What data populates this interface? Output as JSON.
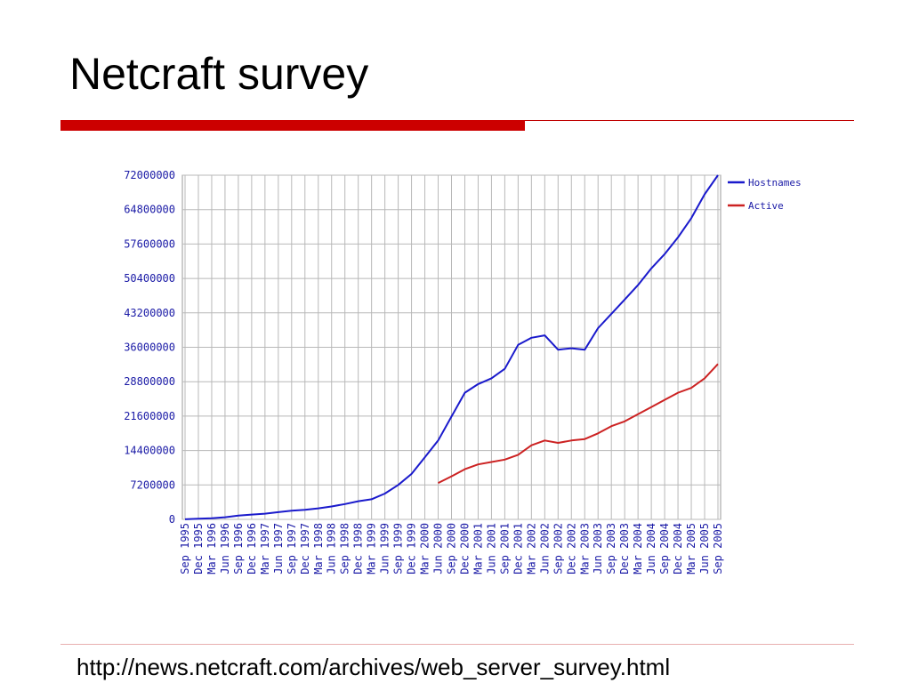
{
  "slide": {
    "title": "Netcraft survey",
    "footer_url": "http://news.netcraft.com/archives/web_server_survey.html"
  },
  "chart_data": {
    "type": "line",
    "title": "",
    "xlabel": "",
    "ylabel": "",
    "ylim": [
      0,
      72000000
    ],
    "y_ticks": [
      0,
      7200000,
      14400000,
      21600000,
      28800000,
      36000000,
      43200000,
      50400000,
      57600000,
      64800000,
      72000000
    ],
    "x_ticks": [
      "Sep 1995",
      "Dec 1995",
      "Mar 1996",
      "Jun 1996",
      "Sep 1996",
      "Dec 1996",
      "Mar 1997",
      "Jun 1997",
      "Sep 1997",
      "Dec 1997",
      "Mar 1998",
      "Jun 1998",
      "Sep 1998",
      "Dec 1998",
      "Mar 1999",
      "Jun 1999",
      "Sep 1999",
      "Dec 1999",
      "Mar 2000",
      "Jun 2000",
      "Sep 2000",
      "Dec 2000",
      "Mar 2001",
      "Jun 2001",
      "Sep 2001",
      "Dec 2001",
      "Mar 2002",
      "Jun 2002",
      "Sep 2002",
      "Dec 2002",
      "Mar 2003",
      "Jun 2003",
      "Sep 2003",
      "Dec 2003",
      "Mar 2004",
      "Jun 2004",
      "Sep 2004",
      "Dec 2004",
      "Mar 2005",
      "Jun 2005",
      "Sep 2005"
    ],
    "grid": true,
    "legend_position": "right",
    "series": [
      {
        "name": "Hostnames",
        "color": "#1a1acc",
        "x": [
          "Sep 1995",
          "Dec 1995",
          "Mar 1996",
          "Jun 1996",
          "Sep 1996",
          "Dec 1996",
          "Mar 1997",
          "Jun 1997",
          "Sep 1997",
          "Dec 1997",
          "Mar 1998",
          "Jun 1998",
          "Sep 1998",
          "Dec 1998",
          "Mar 1999",
          "Jun 1999",
          "Sep 1999",
          "Dec 1999",
          "Mar 2000",
          "Jun 2000",
          "Sep 2000",
          "Dec 2000",
          "Mar 2001",
          "Jun 2001",
          "Sep 2001",
          "Dec 2001",
          "Mar 2002",
          "Jun 2002",
          "Sep 2002",
          "Dec 2002",
          "Mar 2003",
          "Jun 2003",
          "Sep 2003",
          "Dec 2003",
          "Mar 2004",
          "Jun 2004",
          "Sep 2004",
          "Dec 2004",
          "Mar 2005",
          "Jun 2005",
          "Sep 2005"
        ],
        "values": [
          20000,
          150000,
          250000,
          450000,
          800000,
          1000000,
          1200000,
          1500000,
          1800000,
          2000000,
          2300000,
          2700000,
          3200000,
          3800000,
          4200000,
          5400000,
          7200000,
          9500000,
          13000000,
          16500000,
          21500000,
          26500000,
          28300000,
          29500000,
          31500000,
          36500000,
          38000000,
          38500000,
          35500000,
          35800000,
          35500000,
          40000000,
          43000000,
          46000000,
          49000000,
          52500000,
          55500000,
          59000000,
          63000000,
          68000000,
          72000000
        ]
      },
      {
        "name": "Active",
        "color": "#cc2222",
        "x": [
          "Jun 2000",
          "Sep 2000",
          "Dec 2000",
          "Mar 2001",
          "Jun 2001",
          "Sep 2001",
          "Dec 2001",
          "Mar 2002",
          "Jun 2002",
          "Sep 2002",
          "Dec 2002",
          "Mar 2003",
          "Jun 2003",
          "Sep 2003",
          "Dec 2003",
          "Mar 2004",
          "Jun 2004",
          "Sep 2004",
          "Dec 2004",
          "Mar 2005",
          "Jun 2005",
          "Sep 2005"
        ],
        "values": [
          7600000,
          9000000,
          10500000,
          11500000,
          12000000,
          12500000,
          13500000,
          15500000,
          16500000,
          16000000,
          16500000,
          16800000,
          18000000,
          19500000,
          20500000,
          22000000,
          23500000,
          25000000,
          26500000,
          27500000,
          29500000,
          32500000
        ]
      }
    ]
  }
}
